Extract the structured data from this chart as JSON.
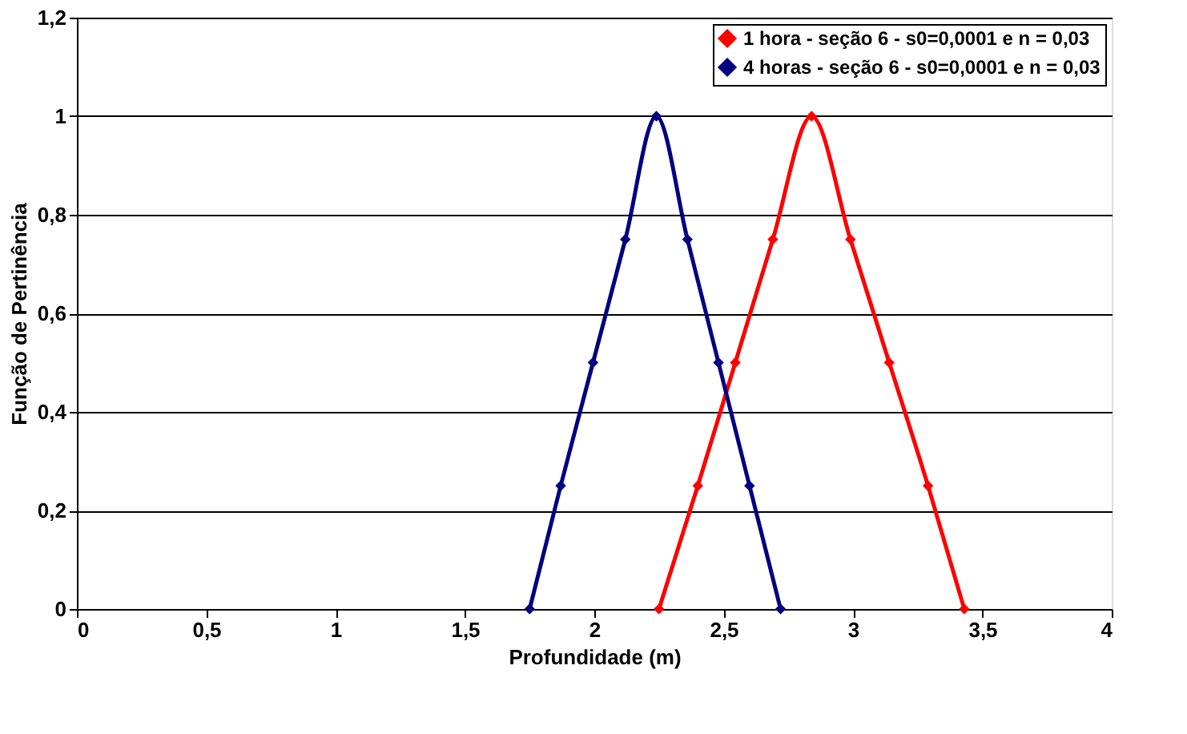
{
  "chart_data": {
    "type": "line",
    "xlabel": "Profundidade (m)",
    "ylabel": "Função de Pertinência",
    "series": [
      {
        "name": "1 hora - seção 6 - s0=0,0001 e n = 0,03",
        "color": "#ff0000",
        "x": [
          2.25,
          2.4,
          2.545,
          2.69,
          2.84,
          2.99,
          3.14,
          3.29,
          3.43
        ],
        "values": [
          0,
          0.25,
          0.5,
          0.75,
          1,
          0.75,
          0.5,
          0.25,
          0
        ]
      },
      {
        "name": "4 horas - seção 6 - s0=0,0001 e n = 0,03",
        "color": "#000080",
        "x": [
          1.75,
          1.87,
          1.995,
          2.12,
          2.24,
          2.36,
          2.48,
          2.6,
          2.72
        ],
        "values": [
          0,
          0.25,
          0.5,
          0.75,
          1,
          0.75,
          0.5,
          0.25,
          0
        ]
      }
    ],
    "xlim": [
      0,
      4
    ],
    "xticks": [
      0,
      {
        "value": 0.5,
        "label": "0,5"
      },
      1,
      {
        "value": 1.5,
        "label": "1,5"
      },
      2,
      {
        "value": 2.5,
        "label": "2,5"
      },
      3,
      {
        "value": 3.5,
        "label": "3,5"
      },
      4
    ],
    "ylim": [
      0,
      1.2
    ],
    "yticks": [
      0,
      {
        "value": 0.2,
        "label": "0,2"
      },
      {
        "value": 0.4,
        "label": "0,4"
      },
      {
        "value": 0.6,
        "label": "0,6"
      },
      {
        "value": 0.8,
        "label": "0,8"
      },
      1,
      {
        "value": 1.2,
        "label": "1,2"
      }
    ],
    "grid": "y",
    "legend": "top right",
    "marker": "diamond",
    "line_style": "solid"
  }
}
